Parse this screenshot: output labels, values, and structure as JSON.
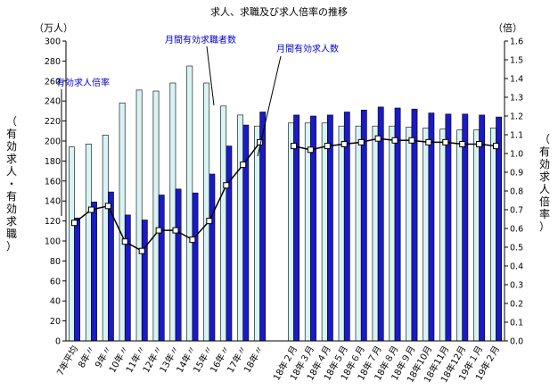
{
  "chart_data": {
    "type": "bar",
    "title": "求人、求職及び求人倍率の推移",
    "y_left_unit": "（万人）",
    "y_right_unit": "（倍）",
    "y_left_label": [
      "（",
      "有",
      "効",
      "求",
      "人",
      "・",
      "有",
      "効",
      "求",
      "職",
      "）"
    ],
    "y_right_label": [
      "（",
      "有",
      "効",
      "求",
      "人",
      "倍",
      "率",
      "）"
    ],
    "ylim_left": [
      0,
      300
    ],
    "ylim_right": [
      0,
      1.6
    ],
    "left_ticks": [
      "0",
      "20",
      "40",
      "60",
      "80",
      "100",
      "120",
      "140",
      "160",
      "180",
      "200",
      "220",
      "240",
      "260",
      "280",
      "300"
    ],
    "right_ticks": [
      "0.0",
      "0.1",
      "0.2",
      "0.3",
      "0.4",
      "0.5",
      "0.6",
      "0.7",
      "0.8",
      "0.9",
      "1.0",
      "1.1",
      "1.2",
      "1.3",
      "1.4",
      "1.5",
      "1.6"
    ],
    "grid": false,
    "categories": [
      "7年平均",
      "8年〃",
      "9年〃",
      "10年〃",
      "11年〃",
      "12年〃",
      "13年〃",
      "14年〃",
      "15年〃",
      "16年〃",
      "17年〃",
      "18年〃",
      "",
      "18年２月",
      "18年３月",
      "18年４月",
      "18年５月",
      "18年６月",
      "18年７月",
      "18年８月",
      "18年９月",
      "18年10月",
      "18年11月",
      "18年12月",
      "19年１月",
      "19年２月"
    ],
    "series": [
      {
        "name": "月間有効求人数",
        "color": "#d8f4f4",
        "axis": "left",
        "values": [
          194,
          197,
          206,
          238,
          251,
          250,
          258,
          275,
          258,
          235,
          226,
          215,
          null,
          218,
          218,
          218,
          215,
          215,
          215,
          215,
          214,
          213,
          212,
          211,
          211,
          213
        ]
      },
      {
        "name": "月間有効求職者数",
        "color": "#1a1ac8",
        "axis": "left",
        "values": [
          123,
          139,
          149,
          126,
          121,
          146,
          152,
          148,
          167,
          195,
          216,
          229,
          null,
          226,
          225,
          226,
          229,
          231,
          234,
          233,
          232,
          228,
          227,
          227,
          226,
          224
        ]
      },
      {
        "name": "有効求人倍率",
        "color": "#000000",
        "axis": "right",
        "type": "line",
        "values": [
          0.63,
          0.7,
          0.72,
          0.53,
          0.48,
          0.59,
          0.59,
          0.54,
          0.64,
          0.83,
          0.94,
          1.06,
          null,
          1.04,
          1.02,
          1.04,
          1.05,
          1.06,
          1.08,
          1.07,
          1.07,
          1.06,
          1.06,
          1.05,
          1.05,
          1.04
        ]
      }
    ],
    "annotations": {
      "ratio": "有効求人倍率",
      "seekers": "月間有効求職者数",
      "openings": "月間有効求人数"
    }
  }
}
